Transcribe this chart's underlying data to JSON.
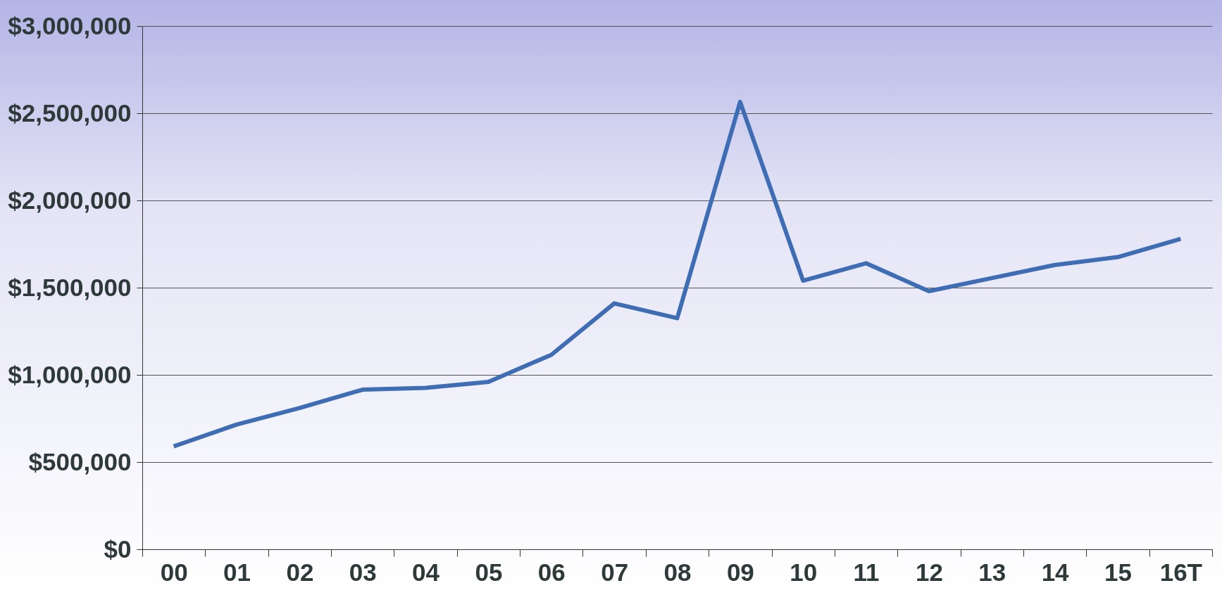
{
  "chart_data": {
    "type": "line",
    "categories": [
      "00",
      "01",
      "02",
      "03",
      "04",
      "05",
      "06",
      "07",
      "08",
      "09",
      "10",
      "11",
      "12",
      "13",
      "14",
      "15",
      "16T"
    ],
    "series": [
      {
        "color": "#3e6db4",
        "values": [
          590000,
          715000,
          810000,
          915000,
          925000,
          960000,
          1115000,
          1410000,
          1325000,
          2565000,
          1540000,
          1640000,
          1480000,
          1555000,
          1630000,
          1675000,
          1780000
        ]
      }
    ],
    "ylim": [
      0,
      3000000
    ],
    "yticks": [
      {
        "value": 0,
        "label": "$0"
      },
      {
        "value": 500000,
        "label": "$500,000"
      },
      {
        "value": 1000000,
        "label": "$1,000,000"
      },
      {
        "value": 1500000,
        "label": "$1,500,000"
      },
      {
        "value": 2000000,
        "label": "$2,000,000"
      },
      {
        "value": 2500000,
        "label": "$2,500,000"
      },
      {
        "value": 3000000,
        "label": "$3,000,000"
      }
    ],
    "grid": "y",
    "legend": false,
    "marker": "none",
    "line_style": "solid"
  }
}
